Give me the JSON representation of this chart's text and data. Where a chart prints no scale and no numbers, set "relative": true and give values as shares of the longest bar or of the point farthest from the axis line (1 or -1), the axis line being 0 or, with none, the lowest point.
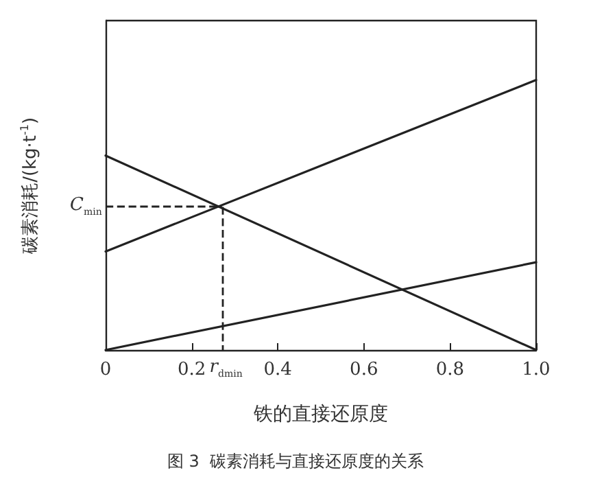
{
  "chart_data": {
    "type": "line",
    "title": "图 3  碳素消耗与直接还原度的关系",
    "xlabel": "铁的直接还原度",
    "ylabel": "碳素消耗/(kg·t$^{-1}$)",
    "relative": true,
    "xlim": [
      0,
      1
    ],
    "xticks": [
      0,
      {
        "value": 0.2,
        "label": "0.2"
      },
      {
        "value": 0.4,
        "label": "0.4"
      },
      {
        "value": 0.6,
        "label": "0.6"
      },
      {
        "value": 0.8,
        "label": "0.8"
      },
      {
        "value": 1,
        "label": "1.0"
      }
    ],
    "x": [
      0,
      1
    ],
    "series": [
      {
        "color": "#222222",
        "values": [
          0.365,
          1
        ]
      },
      {
        "color": "#222222",
        "values": [
          0.72,
          0
        ]
      },
      {
        "color": "#222222",
        "values": [
          0,
          0.325
        ]
      }
    ],
    "annotations": [
      {
        "text": "C$_{min}$",
        "x": 0.27,
        "y": 0.53
      },
      "r$_{dmin}$"
    ],
    "grid": false,
    "marker": "none",
    "line_style": "solid"
  }
}
